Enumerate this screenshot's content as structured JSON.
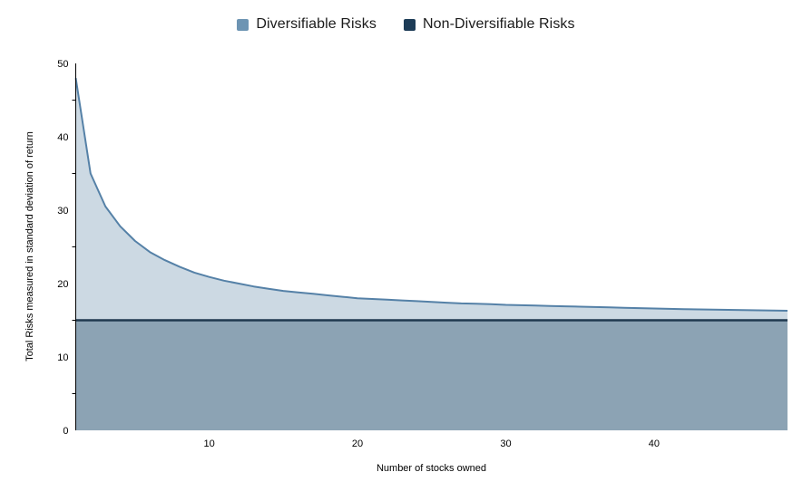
{
  "legend": {
    "items": [
      {
        "label": "Diversifiable Risks",
        "color": "#6d94b3"
      },
      {
        "label": "Non-Diversifiable Risks",
        "color": "#1d3c57"
      }
    ]
  },
  "axes": {
    "x": {
      "label": "Number of stocks owned",
      "ticks": [
        10,
        20,
        30,
        40
      ]
    },
    "y": {
      "label": "Total Risks measured in standard deviation of return",
      "ticks": [
        0,
        10,
        20,
        30,
        40,
        50
      ],
      "minor_ticks": [
        5,
        15,
        25,
        35,
        45
      ]
    }
  },
  "chart_data": {
    "type": "area",
    "title": "",
    "xlabel": "Number of stocks owned",
    "ylabel": "Total Risks measured in standard deviation of return",
    "xlim": [
      1,
      49
    ],
    "ylim": [
      0,
      50
    ],
    "grid": false,
    "legend_position": "top-center",
    "x": [
      1,
      2,
      3,
      4,
      5,
      6,
      7,
      8,
      9,
      10,
      11,
      12,
      13,
      14,
      15,
      16,
      17,
      18,
      19,
      20,
      21,
      22,
      23,
      24,
      25,
      26,
      27,
      28,
      29,
      30,
      31,
      32,
      33,
      34,
      35,
      36,
      37,
      38,
      39,
      40,
      41,
      42,
      43,
      44,
      45,
      46,
      47,
      48,
      49
    ],
    "series": [
      {
        "name": "Total risk curve (top of Diversifiable Risks area)",
        "values": [
          48,
          35,
          30.5,
          27.8,
          25.8,
          24.3,
          23.2,
          22.3,
          21.5,
          20.9,
          20.4,
          20,
          19.6,
          19.3,
          19,
          18.8,
          18.6,
          18.4,
          18.2,
          18,
          17.9,
          17.8,
          17.7,
          17.6,
          17.5,
          17.4,
          17.3,
          17.25,
          17.2,
          17.1,
          17.05,
          17,
          16.95,
          16.9,
          16.85,
          16.8,
          16.75,
          16.7,
          16.65,
          16.6,
          16.56,
          16.52,
          16.48,
          16.45,
          16.42,
          16.39,
          16.36,
          16.33,
          16.3
        ]
      },
      {
        "name": "Non-Diversifiable Risks (constant level)",
        "level": 15
      }
    ],
    "colors": {
      "diversifiable_fill": "#ccd9e3",
      "diversifiable_stroke": "#5581a7",
      "non_diversifiable_fill": "#8ca3b4",
      "non_diversifiable_stroke": "#1f394f",
      "axis_line": "#000000"
    }
  }
}
